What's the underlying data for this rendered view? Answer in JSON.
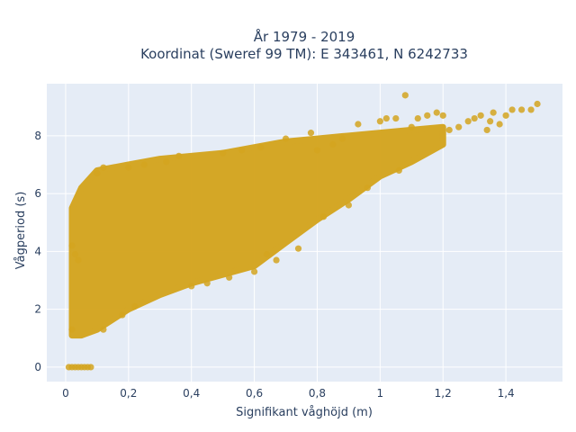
{
  "chart_data": {
    "type": "scatter",
    "title": "År 1979 - 2019",
    "subtitle": "Koordinat (Sweref 99 TM): E 343461, N 6242733",
    "xlabel": "Signifikant våghöjd (m)",
    "ylabel": "Vågperiod (s)",
    "xlim": [
      -0.06,
      1.58
    ],
    "ylim": [
      -0.5,
      9.8
    ],
    "xticks": [
      0,
      0.2,
      0.4,
      0.6,
      0.8,
      1,
      1.2,
      1.4
    ],
    "xtick_labels": [
      "0",
      "0,2",
      "0,4",
      "0,6",
      "0,8",
      "1",
      "1,2",
      "1,4"
    ],
    "yticks": [
      0,
      2,
      4,
      6,
      8
    ],
    "ytick_labels": [
      "0",
      "2",
      "4",
      "6",
      "8"
    ],
    "grid": true,
    "marker_color": "#d4a520",
    "plot_bgcolor": "#e5ecf6",
    "density_envelope": {
      "x": [
        0.02,
        0.05,
        0.1,
        0.2,
        0.3,
        0.4,
        0.5,
        0.6,
        0.7,
        0.8,
        0.9,
        1.0,
        1.1,
        1.2
      ],
      "y_min": [
        1.1,
        1.1,
        1.3,
        2.0,
        2.5,
        2.9,
        3.2,
        3.5,
        4.3,
        5.1,
        5.8,
        6.6,
        7.1,
        7.7
      ],
      "y_max": [
        5.5,
        6.2,
        6.8,
        7.0,
        7.2,
        7.3,
        7.4,
        7.6,
        7.8,
        7.9,
        8.0,
        8.1,
        8.2,
        8.3
      ]
    },
    "series": [
      {
        "x": [
          0.01,
          0.02,
          0.03,
          0.04,
          0.05,
          0.06,
          0.07,
          0.08,
          0.02,
          0.03,
          0.04,
          0.02,
          0.1,
          0.12,
          0.2,
          0.25,
          0.32,
          0.36,
          0.5,
          0.56,
          0.62,
          0.7,
          0.78,
          0.8,
          0.85,
          0.88,
          0.93,
          1.0,
          1.02,
          1.05,
          1.08,
          1.1,
          1.12,
          1.15,
          1.18,
          1.2,
          1.22,
          1.25,
          1.28,
          1.3,
          1.32,
          1.34,
          1.35,
          1.36,
          1.38,
          1.4,
          1.42,
          1.45,
          1.48,
          1.5,
          0.12,
          0.18,
          0.22,
          0.4,
          0.45,
          0.52,
          0.6,
          0.67,
          0.74,
          0.96,
          0.82,
          0.9,
          1.06,
          0.64
        ],
        "y": [
          0.0,
          0.0,
          0.0,
          0.0,
          0.0,
          0.0,
          0.0,
          0.0,
          4.2,
          3.9,
          3.7,
          1.3,
          6.7,
          6.9,
          6.9,
          7.0,
          7.1,
          7.3,
          7.4,
          7.5,
          7.6,
          7.9,
          8.1,
          7.5,
          7.7,
          7.9,
          8.4,
          8.5,
          8.6,
          8.6,
          9.4,
          8.3,
          8.6,
          8.7,
          8.8,
          8.7,
          8.2,
          8.3,
          8.5,
          8.6,
          8.7,
          8.2,
          8.5,
          8.8,
          8.4,
          8.7,
          8.9,
          8.9,
          8.9,
          9.1,
          1.3,
          1.8,
          2.1,
          2.8,
          2.9,
          3.1,
          3.3,
          3.7,
          4.1,
          6.2,
          5.2,
          5.6,
          6.8,
          3.9
        ]
      }
    ]
  }
}
